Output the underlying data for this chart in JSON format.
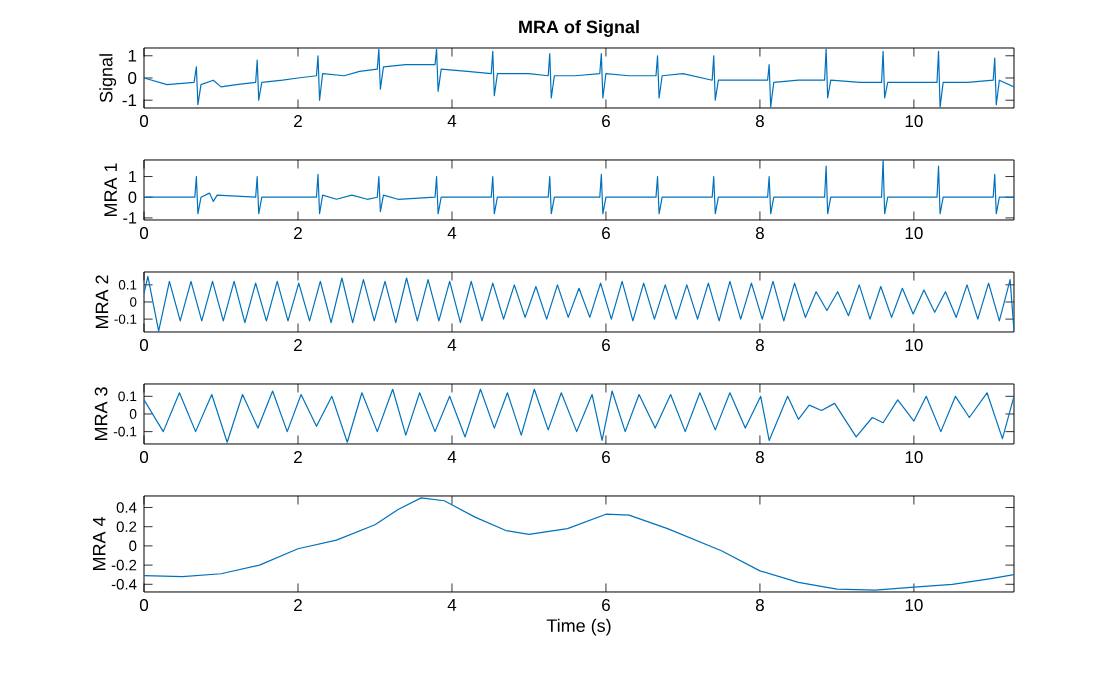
{
  "chart_data": [
    {
      "type": "line",
      "title": "MRA of Signal",
      "ylabel": "Signal",
      "xlim": [
        0,
        11.3
      ],
      "xticks": [
        0,
        2,
        4,
        6,
        8,
        10
      ],
      "ylim": [
        -1.35,
        1.35
      ],
      "yticks": [
        -1,
        0,
        1
      ],
      "x": [
        0,
        0.3,
        0.65,
        0.68,
        0.7,
        0.74,
        0.9,
        1.0,
        1.2,
        1.45,
        1.47,
        1.49,
        1.53,
        1.8,
        2.0,
        2.24,
        2.26,
        2.28,
        2.32,
        2.6,
        2.8,
        3.03,
        3.05,
        3.07,
        3.11,
        3.4,
        3.78,
        3.8,
        3.82,
        3.86,
        4.2,
        4.51,
        4.53,
        4.55,
        4.59,
        5.0,
        5.25,
        5.27,
        5.29,
        5.33,
        5.6,
        5.92,
        5.94,
        5.96,
        6.0,
        6.3,
        6.65,
        6.67,
        6.69,
        6.73,
        7.0,
        7.38,
        7.4,
        7.42,
        7.46,
        7.8,
        8.1,
        8.12,
        8.14,
        8.18,
        8.5,
        8.84,
        8.86,
        8.88,
        8.92,
        9.3,
        9.58,
        9.6,
        9.62,
        9.66,
        10.0,
        10.3,
        10.32,
        10.34,
        10.38,
        10.7,
        11.03,
        11.05,
        11.07,
        11.11,
        11.3
      ],
      "series": [
        {
          "color": "#0072bd",
          "values": [
            0,
            -0.3,
            -0.2,
            0.5,
            -1.2,
            -0.3,
            -0.1,
            -0.4,
            -0.3,
            -0.2,
            0.8,
            -1.0,
            -0.2,
            -0.1,
            0,
            0.1,
            1.0,
            -1.0,
            0.2,
            0.1,
            0.3,
            0.4,
            1.3,
            -0.5,
            0.5,
            0.6,
            0.6,
            1.3,
            -0.6,
            0.4,
            0.3,
            0.2,
            1.2,
            -0.8,
            0.2,
            0.2,
            0.1,
            1.1,
            -0.9,
            0.1,
            0.1,
            0.2,
            1.1,
            -0.9,
            0.2,
            0.1,
            0.1,
            1.0,
            -0.9,
            0.1,
            0.2,
            -0.1,
            1.0,
            -1.0,
            -0.1,
            -0.1,
            -0.1,
            0.6,
            -1.3,
            -0.2,
            -0.1,
            -0.1,
            1.3,
            -0.9,
            -0.1,
            -0.2,
            -0.2,
            1.2,
            -0.9,
            -0.2,
            -0.2,
            -0.2,
            1.2,
            -1.3,
            -0.2,
            -0.2,
            -0.1,
            0.9,
            -1.2,
            -0.1,
            -0.4
          ]
        }
      ]
    },
    {
      "type": "line",
      "ylabel": "MRA 1",
      "xlim": [
        0,
        11.3
      ],
      "xticks": [
        0,
        2,
        4,
        6,
        8,
        10
      ],
      "ylim": [
        -1.1,
        1.8
      ],
      "yticks": [
        -1,
        0,
        1
      ],
      "x": [
        0,
        0.66,
        0.68,
        0.7,
        0.74,
        0.85,
        0.9,
        0.95,
        1.45,
        1.47,
        1.49,
        1.53,
        2.24,
        2.26,
        2.28,
        2.32,
        2.5,
        2.7,
        2.9,
        3.03,
        3.05,
        3.07,
        3.11,
        3.3,
        3.78,
        3.8,
        3.82,
        3.86,
        4.51,
        4.53,
        4.55,
        4.59,
        5.25,
        5.27,
        5.29,
        5.33,
        5.92,
        5.94,
        5.96,
        6.0,
        6.65,
        6.67,
        6.69,
        6.73,
        7.38,
        7.4,
        7.42,
        7.46,
        8.1,
        8.12,
        8.14,
        8.18,
        8.84,
        8.86,
        8.88,
        8.92,
        9.58,
        9.6,
        9.62,
        9.66,
        10.3,
        10.32,
        10.34,
        10.38,
        11.03,
        11.05,
        11.07,
        11.11,
        11.3
      ],
      "series": [
        {
          "color": "#0072bd",
          "values": [
            0,
            0,
            1.0,
            -0.8,
            0,
            0.2,
            -0.2,
            0.1,
            0,
            1.0,
            -0.8,
            0,
            0,
            1.1,
            -0.8,
            0.1,
            -0.1,
            0.1,
            -0.1,
            0,
            1.0,
            -0.7,
            0.1,
            -0.1,
            0,
            1.0,
            -0.8,
            0,
            0,
            1.0,
            -0.8,
            0,
            0,
            1.0,
            -0.8,
            0,
            0,
            1.1,
            -0.8,
            0,
            0,
            1.0,
            -0.8,
            0,
            0,
            1.0,
            -0.8,
            0,
            0,
            1.0,
            -0.8,
            0,
            0,
            1.5,
            -0.8,
            0,
            0,
            1.8,
            -0.8,
            0,
            0,
            1.5,
            -0.8,
            0,
            0,
            1.1,
            -0.8,
            0,
            0
          ]
        }
      ]
    },
    {
      "type": "line",
      "ylabel": "MRA 2",
      "xlim": [
        0,
        11.3
      ],
      "xticks": [
        0,
        2,
        4,
        6,
        8,
        10
      ],
      "ylim": [
        -0.175,
        0.175
      ],
      "yticks": [
        -0.1,
        0,
        0.1
      ],
      "x": [
        0,
        0.05,
        0.19,
        0.33,
        0.47,
        0.61,
        0.75,
        0.89,
        1.03,
        1.17,
        1.31,
        1.45,
        1.59,
        1.73,
        1.87,
        2.01,
        2.15,
        2.29,
        2.43,
        2.57,
        2.71,
        2.85,
        2.99,
        3.13,
        3.27,
        3.41,
        3.55,
        3.69,
        3.83,
        3.97,
        4.11,
        4.25,
        4.39,
        4.53,
        4.67,
        4.81,
        4.95,
        5.09,
        5.23,
        5.37,
        5.51,
        5.65,
        5.79,
        5.93,
        6.07,
        6.21,
        6.35,
        6.49,
        6.63,
        6.77,
        6.91,
        7.05,
        7.19,
        7.33,
        7.47,
        7.61,
        7.75,
        7.89,
        8.03,
        8.17,
        8.31,
        8.45,
        8.59,
        8.73,
        8.87,
        9.01,
        9.15,
        9.29,
        9.43,
        9.57,
        9.71,
        9.85,
        9.99,
        10.13,
        10.27,
        10.41,
        10.55,
        10.69,
        10.83,
        10.97,
        11.11,
        11.25,
        11.3
      ],
      "series": [
        {
          "color": "#0072bd",
          "values": [
            0.05,
            0.15,
            -0.17,
            0.12,
            -0.11,
            0.12,
            -0.11,
            0.12,
            -0.11,
            0.12,
            -0.12,
            0.11,
            -0.11,
            0.12,
            -0.11,
            0.11,
            -0.11,
            0.12,
            -0.12,
            0.14,
            -0.12,
            0.13,
            -0.11,
            0.12,
            -0.12,
            0.14,
            -0.11,
            0.13,
            -0.11,
            0.12,
            -0.12,
            0.12,
            -0.11,
            0.11,
            -0.1,
            0.1,
            -0.09,
            0.09,
            -0.1,
            0.1,
            -0.09,
            0.08,
            -0.09,
            0.11,
            -0.1,
            0.12,
            -0.11,
            0.11,
            -0.1,
            0.1,
            -0.1,
            0.1,
            -0.1,
            0.11,
            -0.11,
            0.12,
            -0.1,
            0.11,
            -0.1,
            0.12,
            -0.11,
            0.11,
            -0.09,
            0.06,
            -0.05,
            0.06,
            -0.08,
            0.1,
            -0.1,
            0.09,
            -0.09,
            0.08,
            -0.07,
            0.07,
            -0.06,
            0.06,
            -0.09,
            0.1,
            -0.1,
            0.11,
            -0.11,
            0.13,
            -0.17
          ]
        }
      ]
    },
    {
      "type": "line",
      "ylabel": "MRA 3",
      "xlim": [
        0,
        11.3
      ],
      "xticks": [
        0,
        2,
        4,
        6,
        8,
        10
      ],
      "ylim": [
        -0.17,
        0.17
      ],
      "yticks": [
        -0.1,
        0,
        0.1
      ],
      "x": [
        0,
        0.25,
        0.46,
        0.67,
        0.88,
        1.08,
        1.28,
        1.48,
        1.67,
        1.86,
        2.04,
        2.24,
        2.44,
        2.64,
        2.83,
        3.03,
        3.23,
        3.4,
        3.58,
        3.78,
        3.97,
        4.17,
        4.37,
        4.55,
        4.72,
        4.9,
        5.07,
        5.25,
        5.42,
        5.62,
        5.82,
        5.95,
        6.08,
        6.25,
        6.43,
        6.64,
        6.84,
        7.03,
        7.22,
        7.42,
        7.61,
        7.81,
        8.01,
        8.12,
        8.36,
        8.5,
        8.64,
        8.8,
        8.97,
        9.25,
        9.46,
        9.6,
        9.79,
        10.0,
        10.16,
        10.35,
        10.54,
        10.72,
        10.95,
        11.15,
        11.3
      ],
      "series": [
        {
          "color": "#0072bd",
          "values": [
            0.08,
            -0.1,
            0.12,
            -0.1,
            0.11,
            -0.16,
            0.11,
            -0.08,
            0.13,
            -0.1,
            0.11,
            -0.07,
            0.1,
            -0.16,
            0.12,
            -0.1,
            0.14,
            -0.12,
            0.12,
            -0.1,
            0.1,
            -0.13,
            0.14,
            -0.08,
            0.12,
            -0.12,
            0.14,
            -0.09,
            0.12,
            -0.1,
            0.11,
            -0.15,
            0.13,
            -0.1,
            0.11,
            -0.08,
            0.11,
            -0.1,
            0.12,
            -0.09,
            0.12,
            -0.08,
            0.1,
            -0.15,
            0.1,
            -0.03,
            0.05,
            0.02,
            0.06,
            -0.13,
            -0.02,
            -0.05,
            0.08,
            -0.04,
            0.1,
            -0.1,
            0.1,
            -0.02,
            0.12,
            -0.14,
            0.1
          ]
        }
      ]
    },
    {
      "type": "line",
      "ylabel": "MRA 4",
      "xlabel": "Time (s)",
      "xlim": [
        0,
        11.3
      ],
      "xticks": [
        0,
        2,
        4,
        6,
        8,
        10
      ],
      "ylim": [
        -0.48,
        0.52
      ],
      "yticks": [
        -0.4,
        -0.2,
        0,
        0.2,
        0.4
      ],
      "x": [
        0,
        0.5,
        1,
        1.5,
        2,
        2.5,
        3,
        3.3,
        3.6,
        3.9,
        4.3,
        4.7,
        5,
        5.5,
        6,
        6.3,
        6.8,
        7.5,
        8,
        8.5,
        9,
        9.5,
        10,
        10.5,
        11,
        11.3
      ],
      "series": [
        {
          "color": "#0072bd",
          "values": [
            -0.31,
            -0.32,
            -0.29,
            -0.2,
            -0.03,
            0.06,
            0.22,
            0.38,
            0.5,
            0.47,
            0.3,
            0.16,
            0.12,
            0.18,
            0.33,
            0.32,
            0.18,
            -0.05,
            -0.26,
            -0.38,
            -0.45,
            -0.46,
            -0.43,
            -0.4,
            -0.34,
            -0.3
          ]
        }
      ]
    }
  ]
}
